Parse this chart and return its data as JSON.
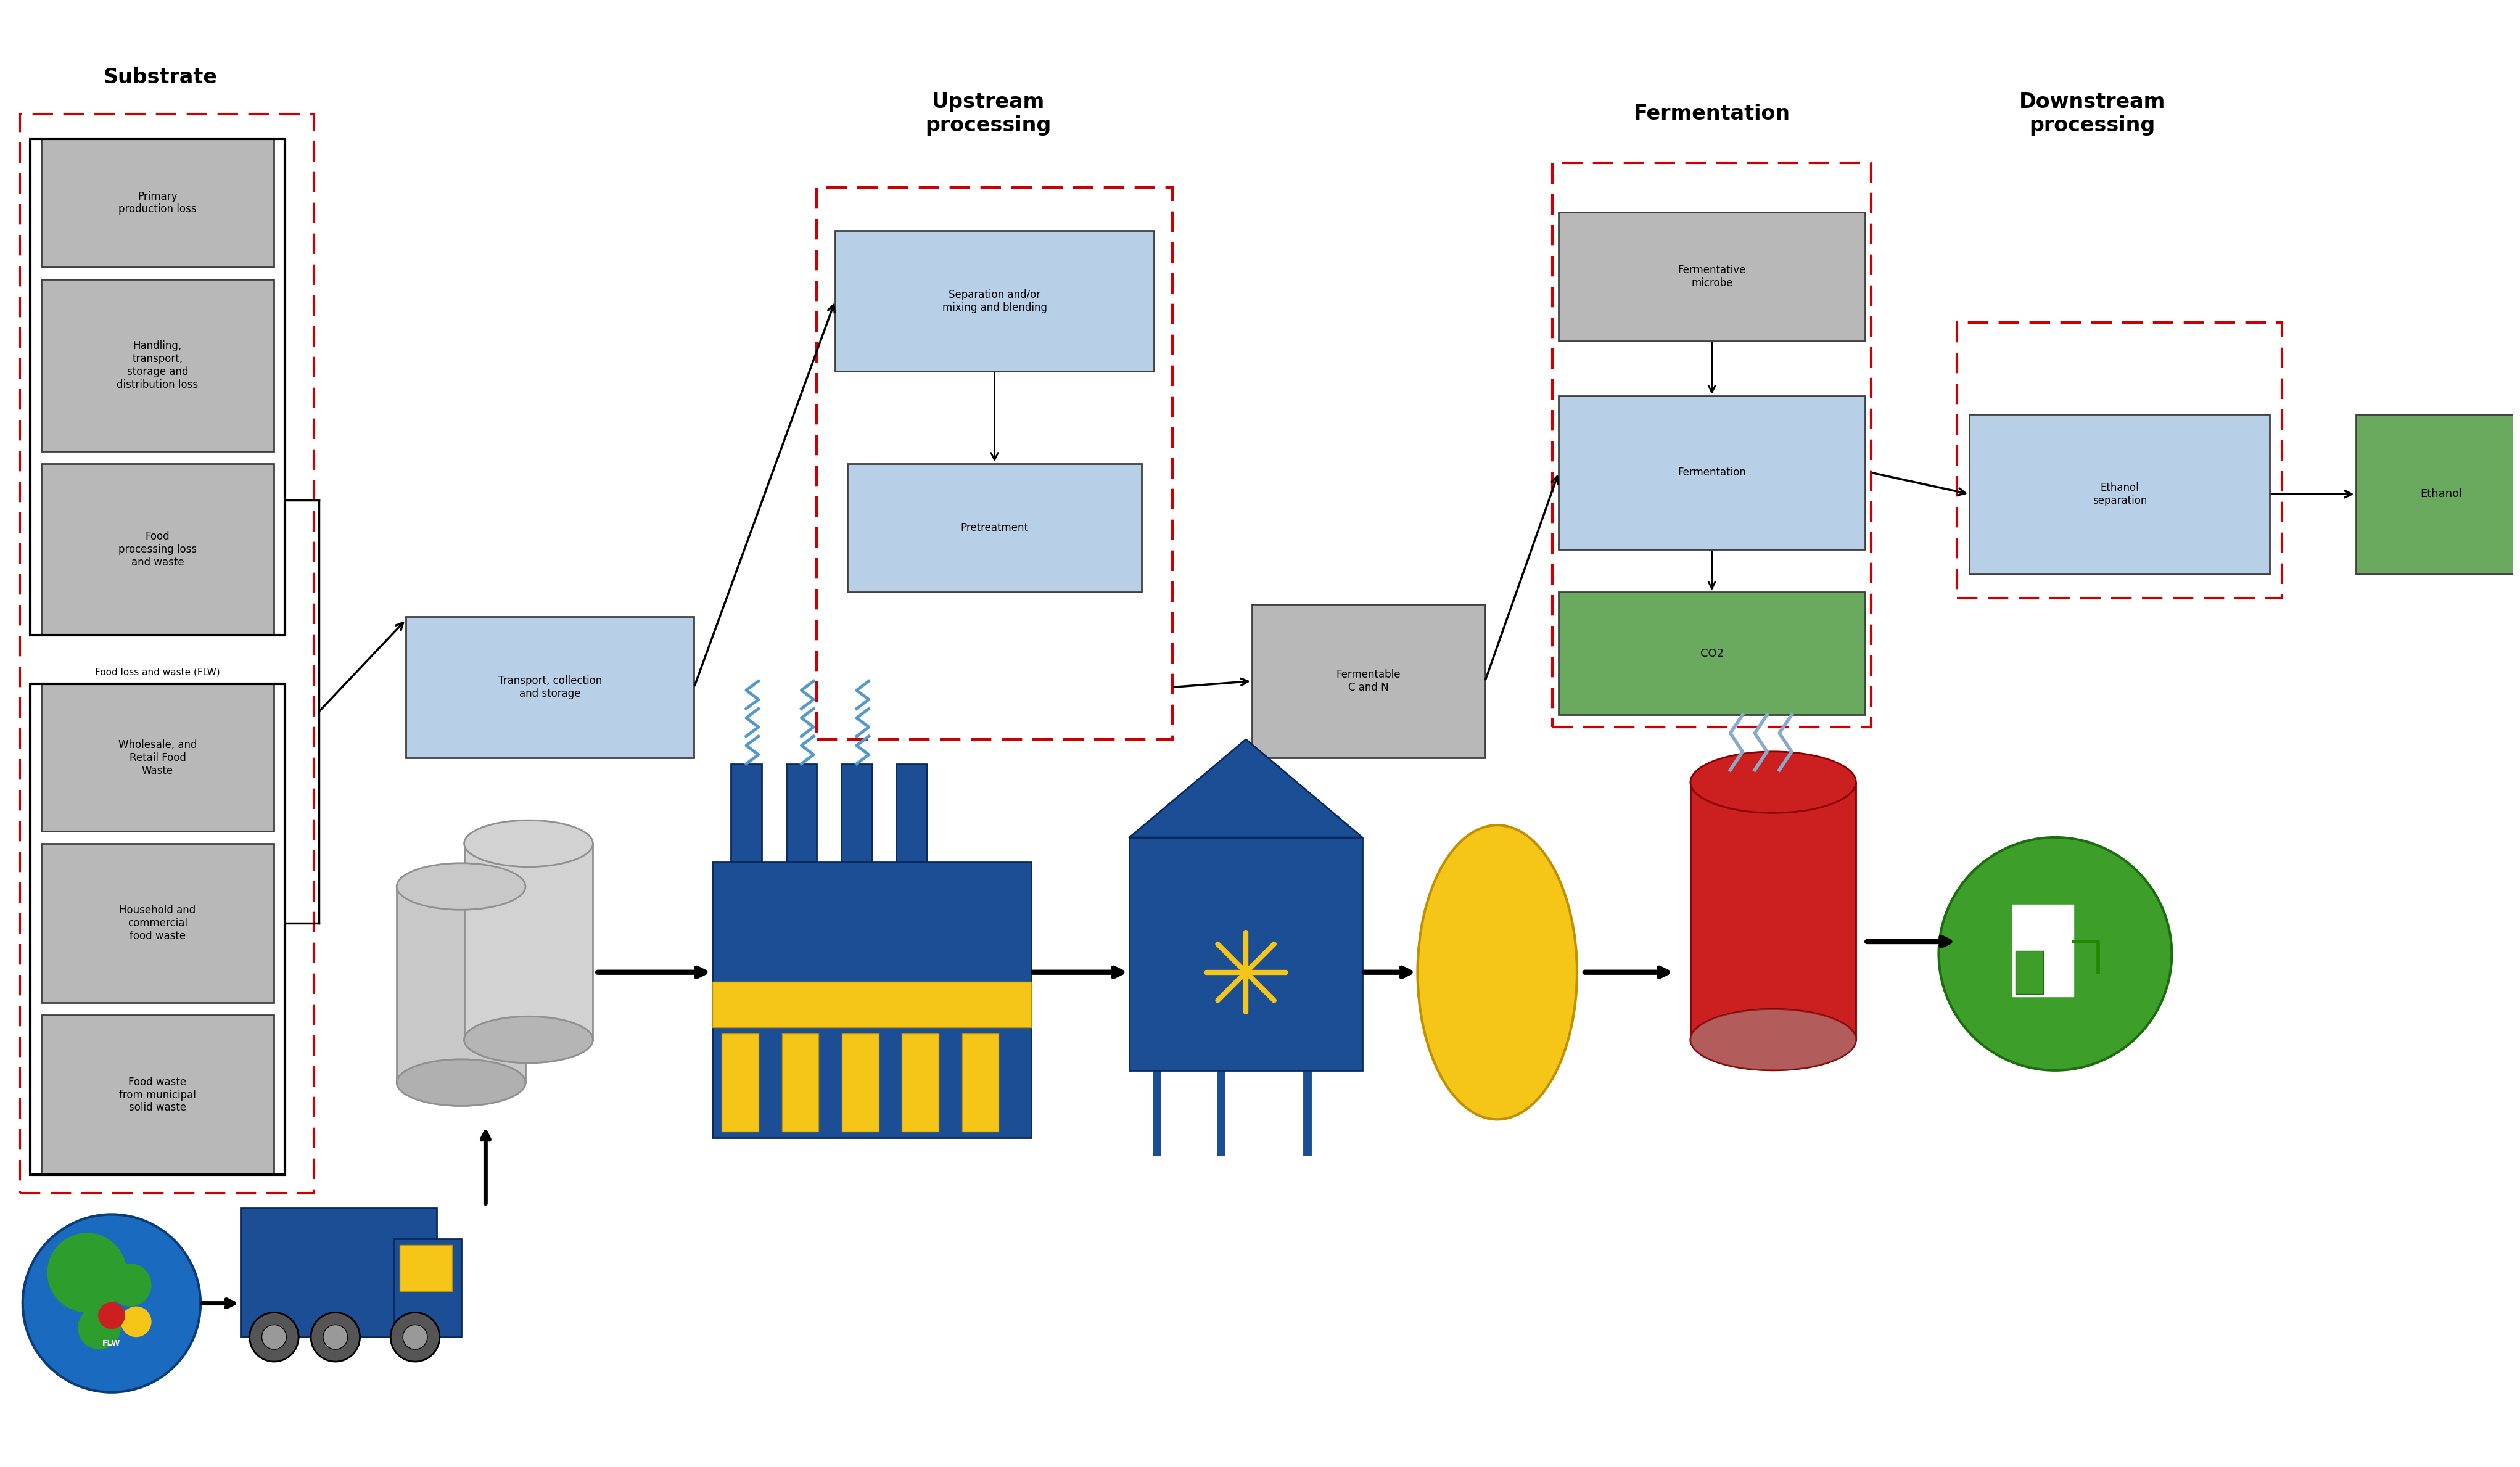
{
  "bg_color": "#ffffff",
  "substrate_title": "Substrate",
  "upstream_title": "Upstream\nprocessing",
  "fermentation_title": "Fermentation",
  "downstream_title": "Downstream\nprocessing",
  "flw_label": "Food loss and waste (FLW)",
  "gray_box_color": "#b8b8b8",
  "light_blue_box_color": "#b8cfe8",
  "green_box_color": "#6aaa5e",
  "red_dash_color": "#cc0000",
  "boxes_substrate_top": [
    "Primary\nproduction loss",
    "Handling,\ntransport,\nstorage and\ndistribution loss",
    "Food\nprocessing loss\nand waste"
  ],
  "boxes_substrate_bottom": [
    "Wholesale, and\nRetail Food\nWaste",
    "Household and\ncommercial\nfood waste",
    "Food waste\nfrom municipal\nsolid waste"
  ],
  "box_transport": "Transport, collection\nand storage",
  "box_separation": "Separation and/or\nmixing and blending",
  "box_pretreatment": "Pretreatment",
  "box_fermentative": "Fermentative\nmicrobe",
  "box_fermentation": "Fermentation",
  "box_co2": "CO2",
  "box_fermentable": "Fermentable\nC and N",
  "box_ethanol_sep": "Ethanol\nseparation",
  "box_ethanol": "Ethanol"
}
